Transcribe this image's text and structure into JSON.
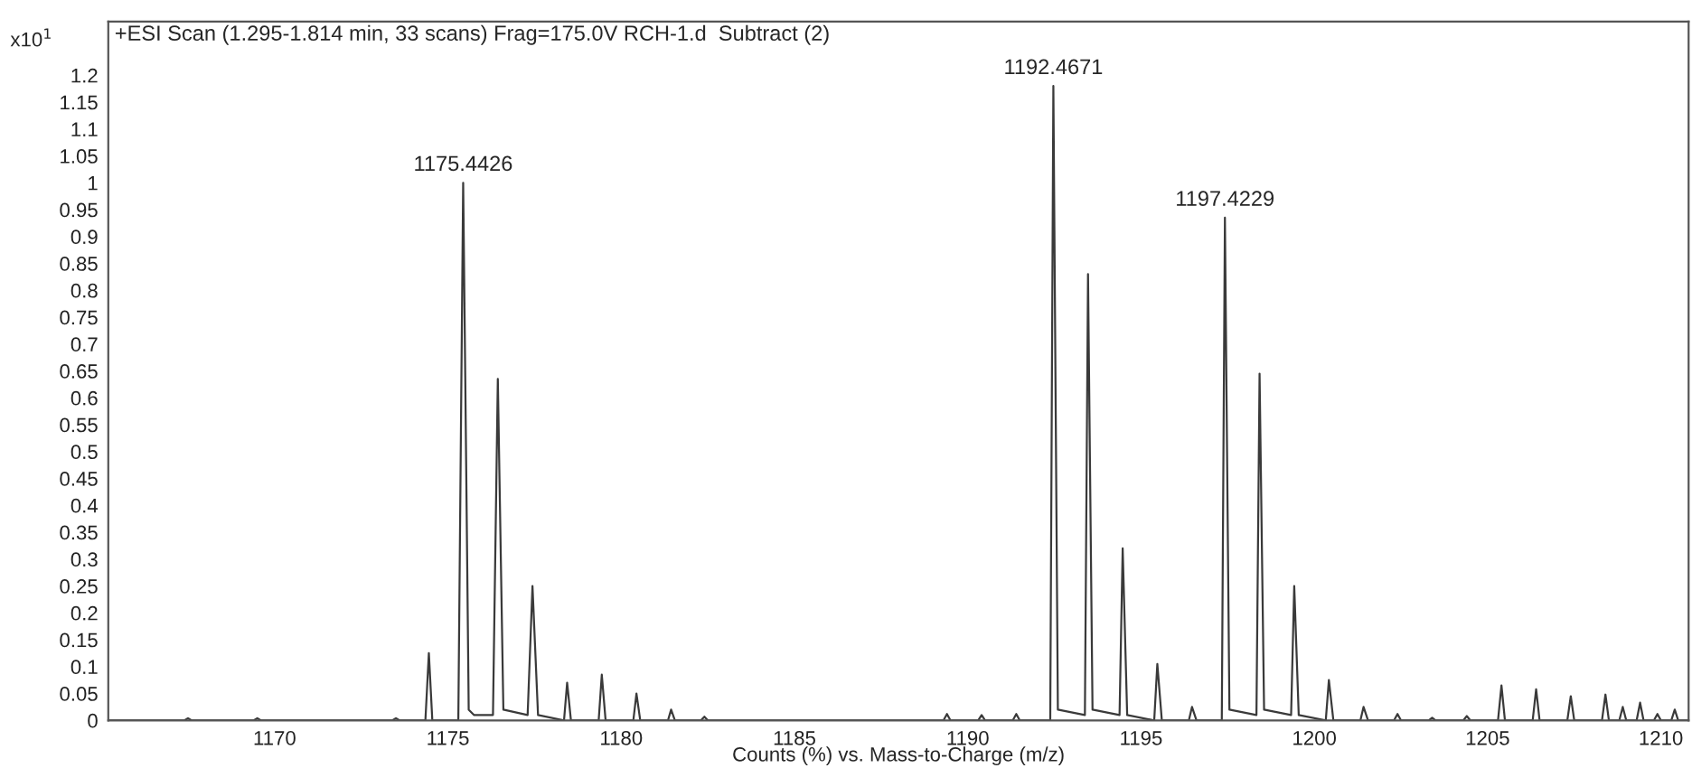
{
  "chart_data": {
    "type": "line",
    "title": "+ESI Scan (1.295-1.814 min, 33 scans) Frag=175.0V RCH-1.d  Subtract (2)",
    "xlabel": "Counts (%) vs. Mass-to-Charge (m/z)",
    "ylabel": "x10$^{1}$",
    "series": [
      {
        "color": "#3a3a3a",
        "x": [
          1165.2,
          1167.4,
          1167.5,
          1167.6,
          1169.4,
          1169.5,
          1169.6,
          1173.4,
          1173.5,
          1173.6,
          1174.35,
          1174.45,
          1174.55,
          1175.3,
          1175.44,
          1175.5,
          1175.6,
          1175.75,
          1176.3,
          1176.44,
          1176.6,
          1177.3,
          1177.44,
          1177.6,
          1178.35,
          1178.44,
          1178.55,
          1179.35,
          1179.44,
          1179.55,
          1180.35,
          1180.44,
          1180.55,
          1181.35,
          1181.44,
          1181.55,
          1182.3,
          1182.4,
          1182.5,
          1189.3,
          1189.4,
          1189.5,
          1190.3,
          1190.4,
          1190.5,
          1191.3,
          1191.4,
          1191.5,
          1192.38,
          1192.47,
          1192.6,
          1193.38,
          1193.47,
          1193.6,
          1194.38,
          1194.47,
          1194.6,
          1195.38,
          1195.47,
          1195.6,
          1196.38,
          1196.47,
          1196.6,
          1197.33,
          1197.42,
          1197.55,
          1198.33,
          1198.42,
          1198.55,
          1199.33,
          1199.42,
          1199.55,
          1200.33,
          1200.42,
          1200.55,
          1201.33,
          1201.42,
          1201.55,
          1202.3,
          1202.4,
          1202.5,
          1203.3,
          1203.4,
          1203.5,
          1204.3,
          1204.4,
          1204.5,
          1205.3,
          1205.4,
          1205.5,
          1206.3,
          1206.4,
          1206.5,
          1207.3,
          1207.4,
          1207.5,
          1208.3,
          1208.4,
          1208.5,
          1208.8,
          1208.9,
          1209.0,
          1209.3,
          1209.4,
          1209.5,
          1209.8,
          1209.9,
          1210.0,
          1210.3,
          1210.4,
          1210.5,
          1210.8
        ],
        "values": [
          0,
          0,
          0.004,
          0,
          0,
          0.004,
          0,
          0,
          0.004,
          0,
          0,
          0.125,
          0,
          0,
          1.0,
          0.64,
          0.02,
          0.01,
          0.01,
          0.635,
          0.02,
          0.01,
          0.25,
          0.01,
          0,
          0.07,
          0,
          0,
          0.085,
          0,
          0,
          0.05,
          0,
          0,
          0.02,
          0,
          0,
          0.007,
          0,
          0,
          0.012,
          0,
          0,
          0.01,
          0,
          0,
          0.012,
          0,
          0,
          1.18,
          0.02,
          0.01,
          0.83,
          0.02,
          0.01,
          0.32,
          0.01,
          0,
          0.105,
          0,
          0,
          0.025,
          0,
          0,
          0.935,
          0.02,
          0.01,
          0.645,
          0.02,
          0.01,
          0.25,
          0.01,
          0,
          0.075,
          0,
          0,
          0.025,
          0,
          0,
          0.012,
          0,
          0,
          0.005,
          0,
          0,
          0.008,
          0,
          0,
          0.065,
          0,
          0,
          0.058,
          0,
          0,
          0.045,
          0,
          0,
          0.048,
          0,
          0,
          0.025,
          0,
          0,
          0.033,
          0,
          0,
          0.012,
          0,
          0,
          0.02,
          0,
          0
        ]
      }
    ],
    "annotations": [
      {
        "text": "1175.4426",
        "x": 1175.44,
        "y": 1.0
      },
      {
        "text": "1192.4671",
        "x": 1192.47,
        "y": 1.18
      },
      {
        "text": "1197.4229",
        "x": 1197.42,
        "y": 0.935
      }
    ],
    "xlim": [
      1165.2,
      1210.8
    ],
    "ylim": [
      0,
      1.3
    ],
    "xticks": [
      1170,
      1175,
      1180,
      1185,
      1190,
      1195,
      1200,
      1205,
      1210
    ],
    "yticks": [
      0,
      0.05,
      0.1,
      0.15,
      0.2,
      0.25,
      0.3,
      0.35,
      0.4,
      0.45,
      0.5,
      0.55,
      0.6,
      0.65,
      0.7,
      0.75,
      0.8,
      0.85,
      0.9,
      0.95,
      1,
      1.05,
      1.1,
      1.15,
      1.2
    ],
    "grid": false,
    "legend": false,
    "marker": "none",
    "line_style": "solid"
  }
}
